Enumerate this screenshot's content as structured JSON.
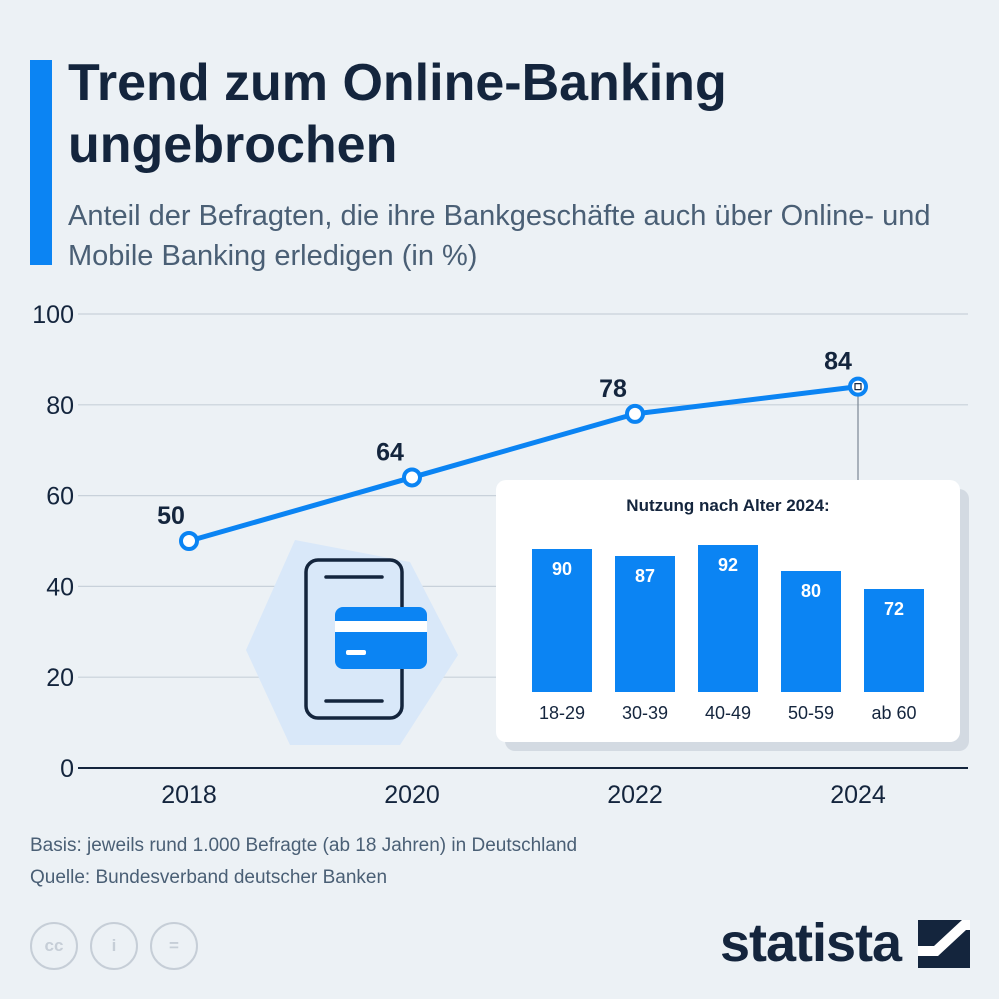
{
  "header": {
    "title": "Trend zum Online-Banking ungebrochen",
    "subtitle": "Anteil der Befragten, die ihre Bankgeschäfte auch über Online- und Mobile Banking erledigen (in %)"
  },
  "colors": {
    "accent": "#0b84f3",
    "text": "#14253d",
    "muted": "#4a5f75",
    "background": "#ecf1f5"
  },
  "icons": [
    "smartphone-icon",
    "credit-card-icon",
    "cc-license-icon",
    "attribution-icon",
    "no-derivatives-icon",
    "statista-logo-icon"
  ],
  "chart_data": [
    {
      "type": "line",
      "x": [
        "2018",
        "2020",
        "2022",
        "2024"
      ],
      "values": [
        50,
        64,
        78,
        84
      ],
      "ylim": [
        0,
        100
      ],
      "yticks": [
        0,
        20,
        40,
        60,
        80,
        100
      ],
      "grid": true
    },
    {
      "type": "bar",
      "title": "Nutzung nach Alter 2024:",
      "categories": [
        "18-29",
        "30-39",
        "40-49",
        "50-59",
        "ab 60"
      ],
      "values": [
        90,
        87,
        92,
        80,
        72
      ]
    }
  ],
  "footer": {
    "basis": "Basis: jeweils rund 1.000 Befragte (ab 18 Jahren) in Deutschland",
    "source": "Quelle: Bundesverband deutscher Banken",
    "brand": "statista",
    "license_icons": [
      "cc",
      "i",
      "="
    ]
  }
}
